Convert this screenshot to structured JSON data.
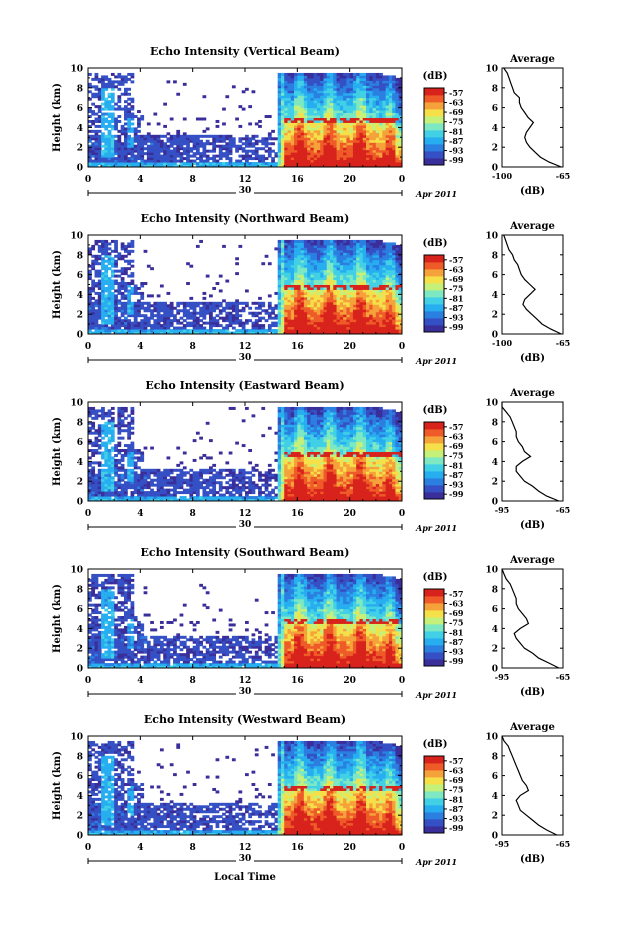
{
  "figure": {
    "xlabel": "Local Time",
    "date_label": "30",
    "month_label": "Apr 2011",
    "colorbar_unit": "(dB)",
    "colorbar_ticks": [
      "-57",
      "-63",
      "-69",
      "-75",
      "-81",
      "-87",
      "-93",
      "-99"
    ],
    "average_title": "Average",
    "average_xlabel": "(dB)"
  },
  "colors": {
    "colormap": [
      "#3a2f9a",
      "#3550c4",
      "#2b7fe0",
      "#27aef0",
      "#41d0e6",
      "#7de8c2",
      "#c5f07a",
      "#f5e04a",
      "#f6a23a",
      "#ee5a28",
      "#d8221c"
    ]
  },
  "chart_data": [
    {
      "type": "heatmap",
      "title": "Echo Intensity (Vertical Beam)",
      "ylabel": "Height (km)",
      "ylim": [
        0,
        10
      ],
      "yticks": [
        "0",
        "2",
        "4",
        "6",
        "8",
        "10"
      ],
      "xlim": [
        0,
        24
      ],
      "xticks": [
        "0",
        "4",
        "8",
        "12",
        "16",
        "20",
        "0"
      ],
      "value_range_db": [
        -99,
        -57
      ],
      "avg_profile": {
        "xlim": [
          -100,
          -65
        ],
        "xticks": [
          "-100",
          "-65"
        ],
        "height_km": [
          0,
          0.5,
          1,
          1.5,
          2,
          2.5,
          3,
          3.5,
          4,
          4.5,
          5,
          5.5,
          6,
          6.5,
          7,
          7.5,
          8,
          8.5,
          9,
          9.5,
          10
        ],
        "db": [
          -66,
          -73,
          -78,
          -81,
          -84,
          -86,
          -87,
          -86,
          -84,
          -82,
          -85,
          -87,
          -89,
          -90,
          -90,
          -93,
          -94,
          -95,
          -96,
          -97,
          -99
        ]
      }
    },
    {
      "type": "heatmap",
      "title": "Echo Intensity (Northward Beam)",
      "ylabel": "Height (km)",
      "ylim": [
        0,
        10
      ],
      "yticks": [
        "0",
        "2",
        "4",
        "6",
        "8",
        "10"
      ],
      "xlim": [
        0,
        24
      ],
      "xticks": [
        "0",
        "4",
        "8",
        "12",
        "16",
        "20",
        "0"
      ],
      "value_range_db": [
        -99,
        -57
      ],
      "avg_profile": {
        "xlim": [
          -100,
          -65
        ],
        "xticks": [
          "-100",
          "-65"
        ],
        "height_km": [
          0,
          0.5,
          1,
          1.5,
          2,
          2.5,
          3,
          3.5,
          4,
          4.5,
          5,
          5.5,
          6,
          6.5,
          7,
          7.5,
          8,
          8.5,
          9,
          9.5,
          10
        ],
        "db": [
          -66,
          -72,
          -77,
          -80,
          -83,
          -86,
          -88,
          -87,
          -84,
          -81,
          -84,
          -87,
          -89,
          -90,
          -91,
          -93,
          -94,
          -96,
          -97,
          -98,
          -99
        ]
      }
    },
    {
      "type": "heatmap",
      "title": "Echo Intensity (Eastward Beam)",
      "ylabel": "Height (km)",
      "ylim": [
        0,
        10
      ],
      "yticks": [
        "0",
        "2",
        "4",
        "6",
        "8",
        "10"
      ],
      "xlim": [
        0,
        24
      ],
      "xticks": [
        "0",
        "4",
        "8",
        "12",
        "16",
        "20",
        "0"
      ],
      "value_range_db": [
        -99,
        -57
      ],
      "avg_profile": {
        "xlim": [
          -95,
          -65
        ],
        "xticks": [
          "-95",
          "-65"
        ],
        "height_km": [
          0,
          0.5,
          1,
          1.5,
          2,
          2.5,
          3,
          3.5,
          4,
          4.5,
          5,
          5.5,
          6,
          6.5,
          7,
          7.5,
          8,
          8.5,
          9,
          9.5,
          10
        ],
        "db": [
          -67,
          -73,
          -77,
          -80,
          -84,
          -86,
          -88,
          -88,
          -85,
          -81,
          -84,
          -85,
          -87,
          -88,
          -88,
          -89,
          -90,
          -91,
          -93,
          -95,
          -95
        ]
      }
    },
    {
      "type": "heatmap",
      "title": "Echo Intensity (Southward Beam)",
      "ylabel": "Height (km)",
      "ylim": [
        0,
        10
      ],
      "yticks": [
        "0",
        "2",
        "4",
        "6",
        "8",
        "10"
      ],
      "xlim": [
        0,
        24
      ],
      "xticks": [
        "0",
        "4",
        "8",
        "12",
        "16",
        "20",
        "0"
      ],
      "value_range_db": [
        -99,
        -57
      ],
      "avg_profile": {
        "xlim": [
          -95,
          -65
        ],
        "xticks": [
          "-95",
          "-65"
        ],
        "height_km": [
          0,
          0.5,
          1,
          1.5,
          2,
          2.5,
          3,
          3.5,
          4,
          4.5,
          5,
          5.5,
          6,
          6.5,
          7,
          7.5,
          8,
          8.5,
          9,
          9.5,
          10
        ],
        "db": [
          -67,
          -72,
          -77,
          -80,
          -84,
          -86,
          -88,
          -89,
          -86,
          -82,
          -83,
          -85,
          -87,
          -88,
          -88,
          -89,
          -90,
          -91,
          -93,
          -94,
          -95
        ]
      }
    },
    {
      "type": "heatmap",
      "title": "Echo Intensity (Westward Beam)",
      "ylabel": "Height (km)",
      "ylim": [
        0,
        10
      ],
      "yticks": [
        "0",
        "2",
        "4",
        "6",
        "8",
        "10"
      ],
      "xlim": [
        0,
        24
      ],
      "xticks": [
        "0",
        "4",
        "8",
        "12",
        "16",
        "20",
        "0"
      ],
      "value_range_db": [
        -99,
        -57
      ],
      "avg_profile": {
        "xlim": [
          -95,
          -65
        ],
        "xticks": [
          "-95",
          "-65"
        ],
        "height_km": [
          0,
          0.5,
          1,
          1.5,
          2,
          2.5,
          3,
          3.5,
          4,
          4.5,
          5,
          5.5,
          6,
          6.5,
          7,
          7.5,
          8,
          8.5,
          9,
          9.5,
          10
        ],
        "db": [
          -68,
          -73,
          -77,
          -80,
          -83,
          -86,
          -87,
          -88,
          -86,
          -82,
          -83,
          -85,
          -86,
          -87,
          -88,
          -89,
          -90,
          -91,
          -92,
          -94,
          -95
        ]
      }
    }
  ]
}
